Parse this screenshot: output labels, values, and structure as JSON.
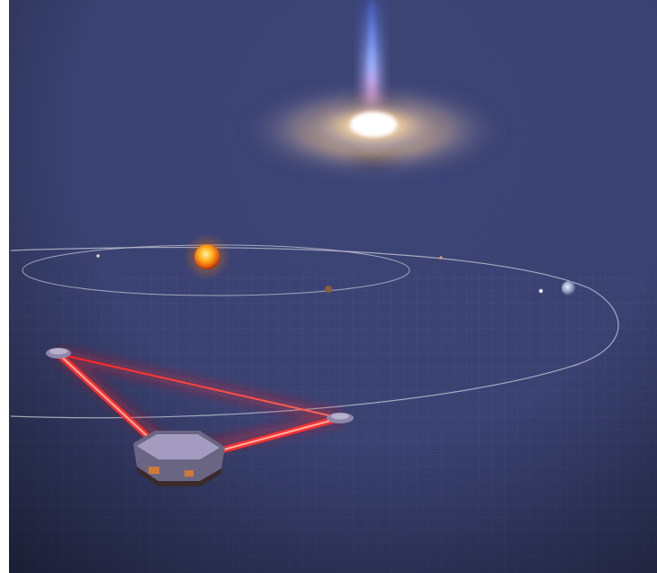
{
  "image": {
    "subject": "spacetime-ripples-with-space-interferometer",
    "colors": {
      "space": "#0b0d24",
      "ripple_light": "#3d4577",
      "ripple_dark": "#0a0b1f",
      "galaxy_core": "#fff6e8",
      "jet": "#b9c8ff",
      "sun": "#ffb020",
      "laser": "#ff2a2a",
      "orbit": "#c9cbd8"
    }
  }
}
